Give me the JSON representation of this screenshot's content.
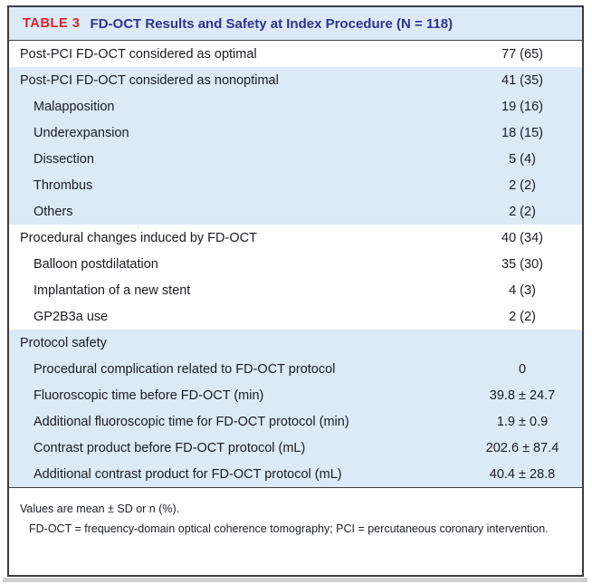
{
  "table": {
    "label": "TABLE 3",
    "title": "FD-OCT Results and Safety at Index Procedure (N = 118)",
    "rows": [
      {
        "label": "Post-PCI FD-OCT considered as optimal",
        "value": "77 (65)",
        "indent": false,
        "shaded": false
      },
      {
        "label": "Post-PCI FD-OCT considered as nonoptimal",
        "value": "41 (35)",
        "indent": false,
        "shaded": true
      },
      {
        "label": "Malapposition",
        "value": "19 (16)",
        "indent": true,
        "shaded": true
      },
      {
        "label": "Underexpansion",
        "value": "18 (15)",
        "indent": true,
        "shaded": true
      },
      {
        "label": "Dissection",
        "value": "5 (4)",
        "indent": true,
        "shaded": true
      },
      {
        "label": "Thrombus",
        "value": "2 (2)",
        "indent": true,
        "shaded": true
      },
      {
        "label": "Others",
        "value": "2 (2)",
        "indent": true,
        "shaded": true
      },
      {
        "label": "Procedural changes induced by FD-OCT",
        "value": "40 (34)",
        "indent": false,
        "shaded": false
      },
      {
        "label": "Balloon postdilatation",
        "value": "35 (30)",
        "indent": true,
        "shaded": false
      },
      {
        "label": "Implantation of a new stent",
        "value": "4 (3)",
        "indent": true,
        "shaded": false
      },
      {
        "label": "GP2B3a use",
        "value": "2 (2)",
        "indent": true,
        "shaded": false
      },
      {
        "label": "Protocol safety",
        "value": "",
        "indent": false,
        "shaded": true
      },
      {
        "label": "Procedural complication related to FD-OCT protocol",
        "value": "0",
        "indent": true,
        "shaded": true
      },
      {
        "label": "Fluoroscopic time before FD-OCT (min)",
        "value": "39.8 ± 24.7",
        "indent": true,
        "shaded": true
      },
      {
        "label": "Additional fluoroscopic time for FD-OCT protocol (min)",
        "value": "1.9 ± 0.9",
        "indent": true,
        "shaded": true
      },
      {
        "label": "Contrast product before FD-OCT protocol (mL)",
        "value": "202.6 ± 87.4",
        "indent": true,
        "shaded": true
      },
      {
        "label": "Additional contrast product for FD-OCT protocol (mL)",
        "value": "40.4 ± 28.8",
        "indent": true,
        "shaded": true
      }
    ],
    "footnotes": [
      "Values are mean ± SD or n (%).",
      "FD-OCT = frequency-domain optical coherence tomography; PCI = percutaneous coronary intervention."
    ]
  },
  "colors": {
    "table_label_red": "#d8232a",
    "title_navy": "#2a3590",
    "row_shade_blue": "#dce9f6",
    "border_dark": "#3d3d45",
    "body_text": "#1b1c22"
  }
}
